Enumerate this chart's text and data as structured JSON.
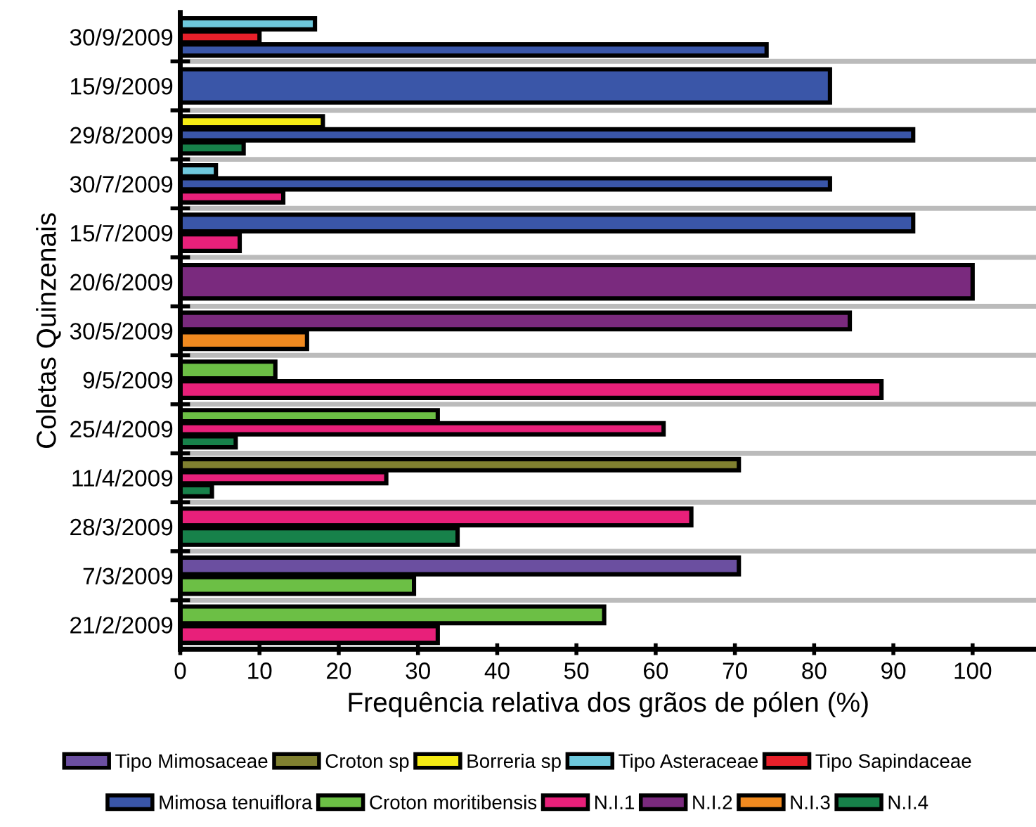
{
  "chart_data": {
    "type": "bar",
    "orientation": "horizontal",
    "xlabel": "Frequência relativa dos grãos de pólen (%)",
    "ylabel": "Coletas Quinzenais",
    "categories": [
      "30/9/2009",
      "15/9/2009",
      "29/8/2009",
      "30/7/2009",
      "15/7/2009",
      "20/6/2009",
      "30/5/2009",
      "9/5/2009",
      "25/4/2009",
      "11/4/2009",
      "28/3/2009",
      "7/3/2009",
      "21/2/2009"
    ],
    "series": [
      {
        "name": "Tipo Mimosaceae",
        "color": "#6b4fa0",
        "values": [
          null,
          null,
          null,
          null,
          null,
          null,
          null,
          null,
          null,
          null,
          null,
          70.5,
          null
        ]
      },
      {
        "name": "Croton sp",
        "color": "#808030",
        "values": [
          null,
          null,
          null,
          null,
          null,
          null,
          null,
          null,
          null,
          70.5,
          null,
          null,
          null
        ]
      },
      {
        "name": "Borreria sp",
        "color": "#f5eb14",
        "values": [
          null,
          null,
          18,
          null,
          null,
          null,
          null,
          null,
          null,
          null,
          null,
          null,
          null
        ]
      },
      {
        "name": "Tipo Asteraceae",
        "color": "#6ec8dc",
        "values": [
          17,
          null,
          null,
          4.5,
          null,
          null,
          null,
          null,
          null,
          null,
          null,
          null,
          null
        ]
      },
      {
        "name": "Tipo Sapindaceae",
        "color": "#e8202a",
        "values": [
          10,
          null,
          null,
          null,
          null,
          null,
          null,
          null,
          null,
          null,
          null,
          null,
          null
        ]
      },
      {
        "name": "Mimosa tenuiflora",
        "color": "#3a56a8",
        "values": [
          74,
          82,
          92.5,
          82,
          92.5,
          null,
          null,
          null,
          null,
          null,
          null,
          null,
          null
        ]
      },
      {
        "name": "Croton moritibensis",
        "color": "#6cbf45",
        "values": [
          null,
          null,
          null,
          null,
          null,
          null,
          null,
          12,
          32.5,
          null,
          null,
          29.5,
          53.5
        ]
      },
      {
        "name": "N.I.1",
        "color": "#e8207a",
        "values": [
          null,
          null,
          null,
          13,
          7.5,
          null,
          null,
          88.5,
          61,
          26,
          64.5,
          null,
          32.5
        ]
      },
      {
        "name": "N.I.2",
        "color": "#7a2a7e",
        "values": [
          null,
          null,
          null,
          null,
          null,
          100,
          84.5,
          null,
          null,
          null,
          null,
          null,
          null
        ]
      },
      {
        "name": "N.I.3",
        "color": "#f08a20",
        "values": [
          null,
          null,
          null,
          null,
          null,
          null,
          16,
          null,
          null,
          null,
          null,
          null,
          null
        ]
      },
      {
        "name": "N.I.4",
        "color": "#17814a",
        "values": [
          null,
          null,
          8,
          null,
          null,
          null,
          null,
          null,
          7,
          4,
          35,
          null,
          null
        ]
      }
    ],
    "xlim": [
      0,
      108
    ],
    "xticks": [
      0,
      10,
      20,
      30,
      40,
      50,
      60,
      70,
      80,
      90,
      100
    ],
    "grid": "y",
    "legend": "bottom"
  }
}
